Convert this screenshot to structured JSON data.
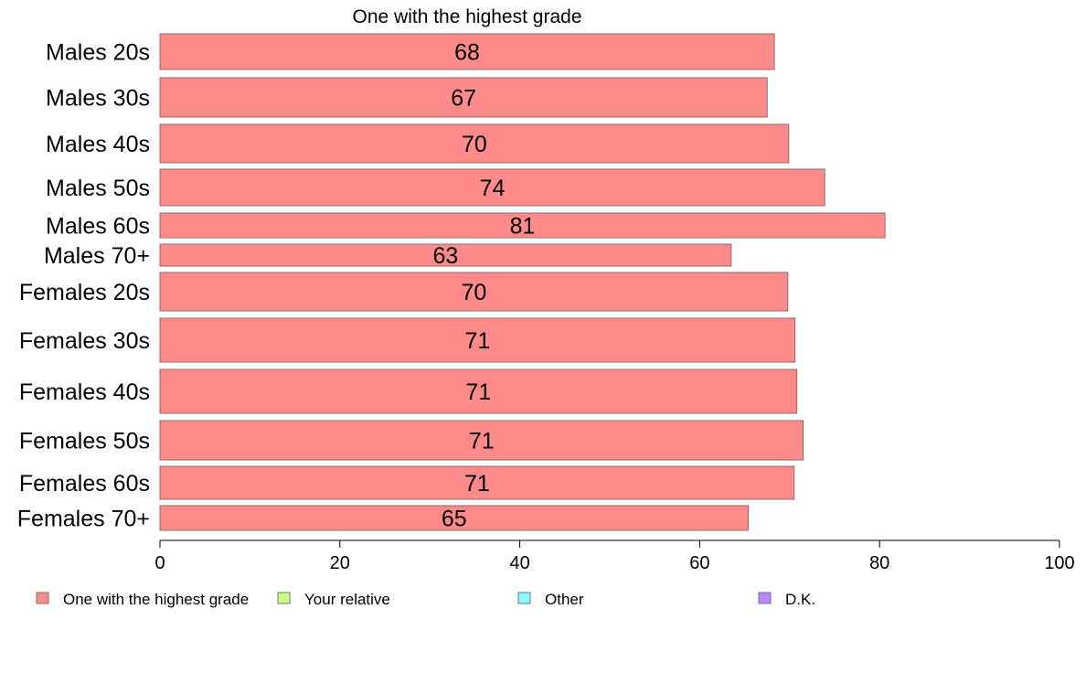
{
  "chart_data": {
    "type": "bar",
    "orientation": "horizontal",
    "title": "One with the highest grade",
    "categories": [
      "Males 20s",
      "Males 30s",
      "Males 40s",
      "Males 50s",
      "Males 60s",
      "Males 70+",
      "Females 20s",
      "Females 30s",
      "Females 40s",
      "Females 50s",
      "Females 60s",
      "Females 70+"
    ],
    "series": [
      {
        "name": "One with the highest grade",
        "values": [
          68.3,
          67.5,
          69.9,
          73.9,
          80.6,
          63.5,
          69.8,
          70.6,
          70.8,
          71.5,
          70.5,
          65.4
        ],
        "labels": [
          "68",
          "67",
          "70",
          "74",
          "81",
          "63",
          "70",
          "71",
          "71",
          "71",
          "71",
          "65"
        ],
        "color": "#ff8a8a"
      }
    ],
    "xlim": [
      0,
      100
    ],
    "xticks": [
      "0",
      "20",
      "40",
      "60",
      "80",
      "100"
    ],
    "grid": false,
    "legend": {
      "position": "bottom",
      "items": [
        {
          "label": "One with the highest grade",
          "color": "#ff8a8a"
        },
        {
          "label": "Your relative",
          "color": "#ccff88"
        },
        {
          "label": "Other",
          "color": "#88ffff"
        },
        {
          "label": "D.K.",
          "color": "#bb88ff"
        }
      ]
    },
    "colors": {
      "bar": "#ff8a8a",
      "bar_stroke": "#8a6a6a",
      "axis": "#000000"
    }
  }
}
